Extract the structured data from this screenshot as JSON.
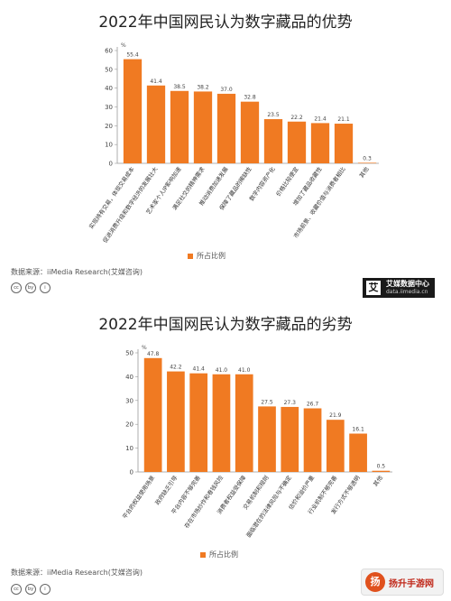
{
  "chart_data": [
    {
      "type": "bar",
      "title": "2022年中国网民认为数字藏品的优势",
      "categories": [
        "实现持有交易，体现交易成本",
        "促进消费升级和数字经济的发展壮大",
        "艺术家个人IP影响加速",
        "满足社交的精神需求",
        "推动消费加速发展",
        "保障了藏品的稀缺性",
        "数字内容资产化",
        "价格比较便宜",
        "增加了藏品收藏性",
        "市场前景、收藏价值与消费者相比",
        "其他"
      ],
      "values": [
        55.4,
        41.4,
        38.5,
        38.2,
        37.0,
        32.8,
        23.5,
        22.2,
        21.4,
        21.1,
        0.3
      ],
      "data_labels": [
        "55.4",
        "41.4",
        "38.5",
        "38.2",
        "37.0",
        "32.8",
        "23.5",
        "22.2",
        "21.4",
        "21.1",
        "0.3"
      ],
      "ylim": [
        0,
        60
      ],
      "yticks": [
        "0",
        "10",
        "20",
        "30",
        "40",
        "50",
        "60"
      ],
      "ylabel_unit": "%",
      "legend": "所占比例",
      "grid": false,
      "color": "#F07A22"
    },
    {
      "type": "bar",
      "title": "2022年中国网民认为数字藏品的劣势",
      "categories": [
        "平台的权益使用场景",
        "政府缺乏引导",
        "平台内容不够完善",
        "存在市场炒作和卷钱风险",
        "消费者权益受保障",
        "交易机制和规则",
        "面临潜在的法律风险与不确定",
        "估价和溢价严重",
        "行业机制不够完善",
        "发行方式不够透明",
        "其他"
      ],
      "values": [
        47.8,
        42.2,
        41.4,
        41.0,
        41.0,
        27.5,
        27.3,
        26.7,
        21.9,
        16.1,
        0.5
      ],
      "data_labels": [
        "47.8",
        "42.2",
        "41.4",
        "41.0",
        "41.0",
        "27.5",
        "27.3",
        "26.7",
        "21.9",
        "16.1",
        "0.5"
      ],
      "ylim": [
        0,
        50
      ],
      "yticks": [
        "0",
        "10",
        "20",
        "30",
        "40",
        "50"
      ],
      "ylabel_unit": "%",
      "legend": "所占比例",
      "grid": false,
      "color": "#F07A22"
    }
  ],
  "source_text": "数据来源：iiMedia Research(艾媒咨询)",
  "cc_icons": [
    "cc-icon",
    "by-icon",
    "person-icon"
  ],
  "brand": {
    "logo_char": "艾",
    "name": "艾媒数据中心",
    "url": "data.iimedia.cn"
  },
  "watermark": {
    "logo_char": "扬",
    "text": "扬升手游网"
  }
}
